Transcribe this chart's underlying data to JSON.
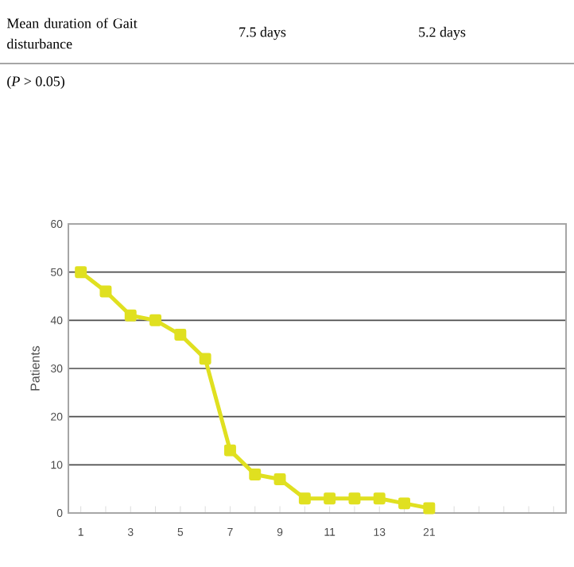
{
  "chart_data": {
    "type": "line",
    "ylabel": "Patients",
    "categories": [
      "1",
      null,
      "3",
      null,
      "5",
      null,
      "7",
      null,
      "9",
      null,
      "11",
      null,
      "13",
      null,
      "21",
      null,
      null,
      null,
      null,
      null
    ],
    "series": [
      {
        "color": "#e0e020",
        "values": [
          50,
          46,
          41,
          40,
          37,
          32,
          13,
          8,
          7,
          3,
          3,
          3,
          3,
          2,
          1,
          null,
          null,
          null,
          null,
          null
        ]
      }
    ],
    "ylim": [
      0,
      60
    ],
    "yticks": [
      0,
      10,
      20,
      30,
      40,
      50,
      60
    ],
    "grid": "y",
    "marker": "square",
    "line_style": "solid",
    "annotations": [
      "Mean duration of Gait disturbance",
      "7.5 days",
      "5.2 days",
      "(*P* > 0.05)"
    ]
  }
}
